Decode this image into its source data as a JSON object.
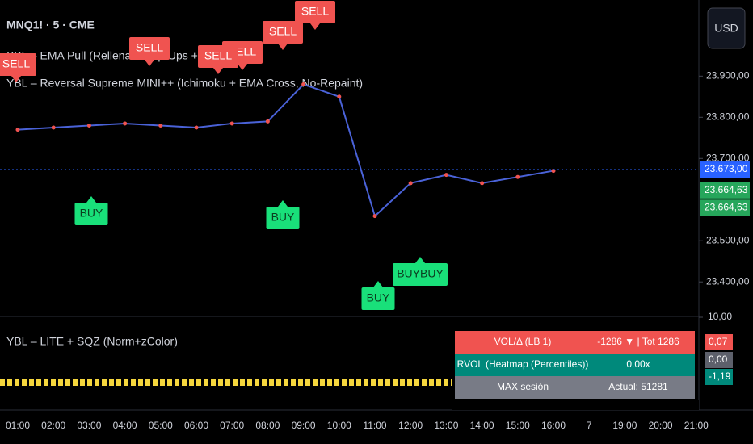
{
  "chart_data": {
    "type": "line",
    "symbol": "MNQ1! · 5 · CME",
    "indicators": [
      "YBL – EMA Pull (Rellena + Pop-Ups + Alertas)",
      "YBL – Reversal Supreme MINI++ (Ichimoku + EMA Cross, No-Repaint)"
    ],
    "currency": "USD",
    "categories": [
      "01:00",
      "02:00",
      "03:00",
      "04:00",
      "05:00",
      "06:00",
      "07:00",
      "08:00",
      "09:00",
      "10:00",
      "11:00",
      "12:00",
      "13:00",
      "14:00",
      "15:00",
      "16:00",
      "7",
      "19:00",
      "20:00",
      "21:00"
    ],
    "series": [
      {
        "color": "#4a62d8",
        "values": [
          23770,
          23775,
          23780,
          23785,
          23780,
          23775,
          23785,
          23790,
          23880,
          23850,
          23560,
          23640,
          23660,
          23640,
          23655,
          23670,
          null,
          null,
          null,
          null
        ]
      }
    ],
    "ylim": [
      23320,
      24085
    ],
    "yticks": [
      {
        "value": 23400,
        "label": "23.400,00"
      },
      {
        "value": 23500,
        "label": "23.500,00"
      },
      {
        "value": 23700,
        "label": "23.700,00"
      },
      {
        "value": 23800,
        "label": "23.800,00"
      },
      {
        "value": 23900,
        "label": "23.900,00"
      }
    ],
    "price_labels": [
      {
        "value": 23673,
        "label": "23.673,00",
        "color": "#2962ff"
      },
      {
        "value": 23664.63,
        "label": "23.664,63",
        "color": "#26a65b"
      },
      {
        "value": 23664.63,
        "label": "23.664,63",
        "color": "#26a65b"
      }
    ],
    "signals": [
      "BUY",
      "BUY",
      "BUY",
      "BUYBUY",
      "SELL",
      "SELL",
      "SELL",
      "SELL",
      "SELL",
      "SELL"
    ],
    "oscillator": {
      "title": "YBL – LITE + SQZ (Norm+zColor)",
      "yticks": [
        {
          "value": 10,
          "label": "10,00"
        }
      ],
      "last_values": [
        {
          "value": 0.07,
          "label": "0,07",
          "color": "#f05350"
        },
        {
          "value": 0,
          "label": "0,00",
          "color": "#5d606b"
        },
        {
          "value": -1.19,
          "label": "-1,19",
          "color": "#00897b"
        }
      ]
    },
    "table": [
      [
        "VOL/Δ (LB 1)",
        "-1286 ▼ | Tot 1286"
      ],
      [
        "RVOL (Heatmap (Percentiles))",
        "0.00x"
      ],
      [
        "MAX sesión",
        "Actual: 51281"
      ]
    ]
  }
}
